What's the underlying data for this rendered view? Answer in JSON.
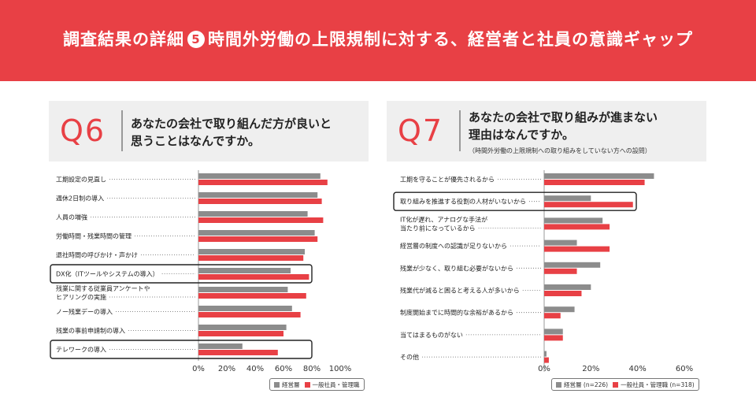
{
  "header": {
    "title_before": "調査結果の詳細",
    "title_number": "5",
    "title_after": "時間外労働の上限規制に対する、経営者と社員の意識ギャップ"
  },
  "colors": {
    "banner": "#e84045",
    "manager": "#8c8c8c",
    "employee": "#e84045",
    "highlight_border": "#222222"
  },
  "q6": {
    "label": "Q6",
    "question_line1": "あなたの会社で取り組んだ方が良いと",
    "question_line2": "思うことはなんですか。",
    "legend": {
      "manager": "経営層",
      "employee": "一般社員・管理職"
    }
  },
  "q7": {
    "label": "Q7",
    "question_line1": "あなたの会社で取り組みが進まない",
    "question_line2": "理由はなんですか。",
    "note": "（時間外労働の上限規制への取り組みをしていない方への設問）",
    "legend": {
      "manager": "経営層",
      "manager_n": "(n=226)",
      "employee": "一般社員・管理職",
      "employee_n": "(n=318)"
    }
  },
  "chart_data": [
    {
      "type": "bar",
      "orientation": "horizontal",
      "categories": [
        "工期設定の見直し",
        "週休2日制の導入",
        "人員の増強",
        "労働時間・残業時間の管理",
        "退社時間の呼びかけ・声かけ",
        "DX化（ITツールやシステムの導入）",
        "残業に関する従業員アンケートや\nヒアリングの実施",
        "ノー残業デーの導入",
        "残業の事前申請制の導入",
        "テレワークの導入"
      ],
      "series": [
        {
          "name": "経営層",
          "values": [
            86,
            84,
            77,
            82,
            75,
            65,
            63,
            66,
            62,
            31
          ]
        },
        {
          "name": "一般社員・管理職",
          "values": [
            91,
            87,
            88,
            84,
            74,
            78,
            76,
            72,
            60,
            56
          ]
        }
      ],
      "xlim": [
        0,
        100
      ],
      "xticks": [
        "0%",
        "20%",
        "40%",
        "60%",
        "80%",
        "100%"
      ],
      "highlighted": [
        5,
        9
      ]
    },
    {
      "type": "bar",
      "orientation": "horizontal",
      "categories": [
        "工期を守ることが優先されるから",
        "取り組みを推進する役割の人材がいないから",
        "IT化が遅れ、アナログな手法が\n当たり前になっているから",
        "経営層の制度への認識が足りないから",
        "残業が少なく、取り組む必要がないから",
        "残業代が減ると困ると考える人が多いから",
        "制度開始までに時間的な余裕があるから",
        "当てはまるものがない",
        "その他"
      ],
      "series": [
        {
          "name": "経営層",
          "values": [
            47,
            20,
            25,
            14,
            24,
            20,
            13,
            8,
            1
          ]
        },
        {
          "name": "一般社員・管理職",
          "values": [
            43,
            38,
            28,
            28,
            14,
            16,
            7,
            8,
            2
          ]
        }
      ],
      "xlim": [
        0,
        60
      ],
      "xticks": [
        "0%",
        "20%",
        "40%",
        "60%"
      ],
      "highlighted": [
        1
      ]
    }
  ]
}
